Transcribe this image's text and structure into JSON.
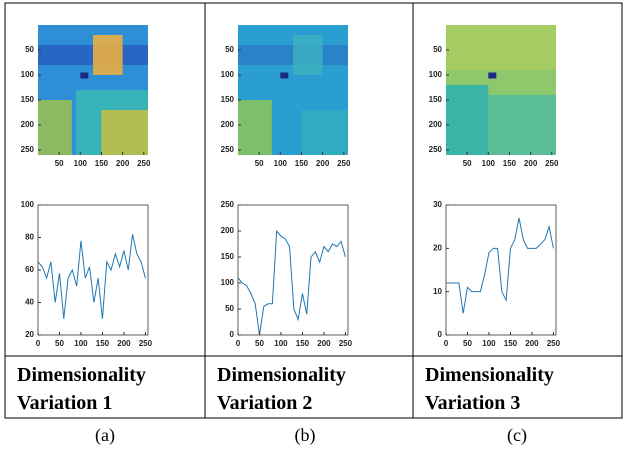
{
  "chart_data": [
    {
      "type": "heatmap",
      "xlim": [
        0,
        260
      ],
      "ylim": [
        0,
        260
      ],
      "xticks": [
        50,
        100,
        150,
        200,
        250
      ],
      "yticks": [
        50,
        100,
        150,
        200,
        250
      ]
    },
    {
      "type": "heatmap",
      "xlim": [
        0,
        260
      ],
      "ylim": [
        0,
        260
      ],
      "xticks": [
        50,
        100,
        150,
        200,
        250
      ],
      "yticks": [
        50,
        100,
        150,
        200,
        250
      ]
    },
    {
      "type": "heatmap",
      "xlim": [
        0,
        260
      ],
      "ylim": [
        0,
        260
      ],
      "xticks": [
        50,
        100,
        150,
        200,
        250
      ],
      "yticks": [
        50,
        100,
        150,
        200,
        250
      ]
    },
    {
      "type": "line",
      "color": "#1f77b4",
      "xlim": [
        0,
        256
      ],
      "ylim": [
        20,
        100
      ],
      "xticks": [
        0,
        50,
        100,
        150,
        200,
        250
      ],
      "yticks": [
        20,
        40,
        60,
        80,
        100
      ],
      "x": [
        0,
        10,
        20,
        30,
        40,
        50,
        60,
        70,
        80,
        90,
        100,
        110,
        120,
        130,
        140,
        150,
        160,
        170,
        180,
        190,
        200,
        210,
        220,
        230,
        240,
        250
      ],
      "values": [
        65,
        62,
        55,
        65,
        40,
        58,
        30,
        55,
        60,
        50,
        78,
        55,
        62,
        40,
        55,
        30,
        65,
        60,
        70,
        62,
        72,
        60,
        82,
        70,
        65,
        55
      ]
    },
    {
      "type": "line",
      "color": "#1f77b4",
      "xlim": [
        0,
        256
      ],
      "ylim": [
        0,
        250
      ],
      "xticks": [
        0,
        50,
        100,
        150,
        200,
        250
      ],
      "yticks": [
        0,
        50,
        100,
        150,
        200,
        250
      ],
      "x": [
        0,
        10,
        20,
        30,
        40,
        50,
        60,
        70,
        80,
        90,
        100,
        110,
        120,
        130,
        140,
        150,
        160,
        170,
        180,
        190,
        200,
        210,
        220,
        230,
        240,
        250
      ],
      "values": [
        110,
        100,
        95,
        80,
        60,
        0,
        55,
        60,
        60,
        200,
        190,
        185,
        170,
        50,
        30,
        80,
        40,
        150,
        160,
        140,
        170,
        160,
        175,
        170,
        180,
        150
      ]
    },
    {
      "type": "line",
      "color": "#1f77b4",
      "xlim": [
        0,
        256
      ],
      "ylim": [
        0,
        30
      ],
      "xticks": [
        0,
        50,
        100,
        150,
        200,
        250
      ],
      "yticks": [
        0,
        10,
        20,
        30
      ],
      "x": [
        0,
        10,
        20,
        30,
        40,
        50,
        60,
        70,
        80,
        90,
        100,
        110,
        120,
        130,
        140,
        150,
        160,
        170,
        180,
        190,
        200,
        210,
        220,
        230,
        240,
        250
      ],
      "values": [
        12,
        12,
        12,
        12,
        5,
        11,
        10,
        10,
        10,
        14,
        19,
        20,
        20,
        10,
        8,
        20,
        22,
        27,
        22,
        20,
        20,
        20,
        21,
        22,
        25,
        20
      ]
    }
  ],
  "labels": [
    "Dimensionality Variation 1",
    "Dimensionality Variation 2",
    "Dimensionality Variation 3"
  ],
  "captions": [
    "(a)",
    "(b)",
    "(c)"
  ]
}
